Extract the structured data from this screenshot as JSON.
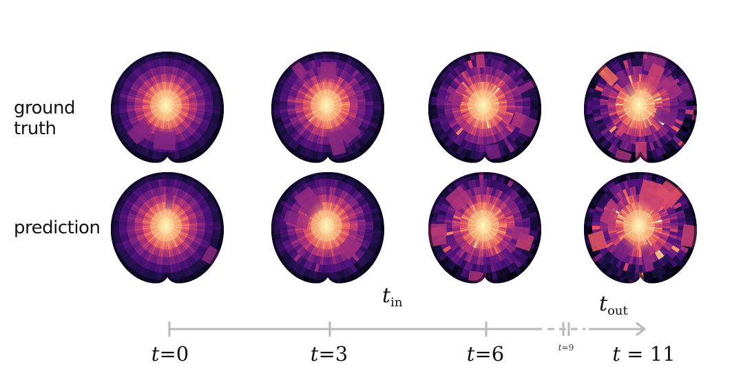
{
  "rows": {
    "ground_truth_label": "ground\ntruth",
    "prediction_label": "prediction"
  },
  "timeline": {
    "range_in": {
      "symbol": "t",
      "subscript": "in"
    },
    "range_out": {
      "symbol": "t",
      "subscript": "out"
    },
    "ticks": [
      {
        "symbol": "t",
        "eq": "=",
        "value": "0"
      },
      {
        "symbol": "t",
        "eq": "=",
        "value": "3"
      },
      {
        "symbol": "t",
        "eq": "=",
        "value": "6"
      },
      {
        "symbol": "t",
        "eq": "=",
        "value": "9"
      },
      {
        "symbol": "t",
        "eq": " = ",
        "value": "11"
      }
    ],
    "axis_color": "#b8b8b8"
  },
  "colormap": [
    "#000004",
    "#1c1044",
    "#4f127b",
    "#812581",
    "#b5367a",
    "#e55064",
    "#fb8761",
    "#fec287",
    "#fcfdbf"
  ],
  "panels": {
    "ground_truth": [
      {
        "time": "t=0",
        "chaos": 0.15
      },
      {
        "time": "t=3",
        "chaos": 0.35
      },
      {
        "time": "t=6",
        "chaos": 0.6
      },
      {
        "time": "t=11",
        "chaos": 1.0
      }
    ],
    "prediction": [
      {
        "time": "t=0",
        "chaos": 0.15
      },
      {
        "time": "t=3",
        "chaos": 0.35
      },
      {
        "time": "t=6",
        "chaos": 0.62
      },
      {
        "time": "t=11",
        "chaos": 0.95
      }
    ]
  }
}
